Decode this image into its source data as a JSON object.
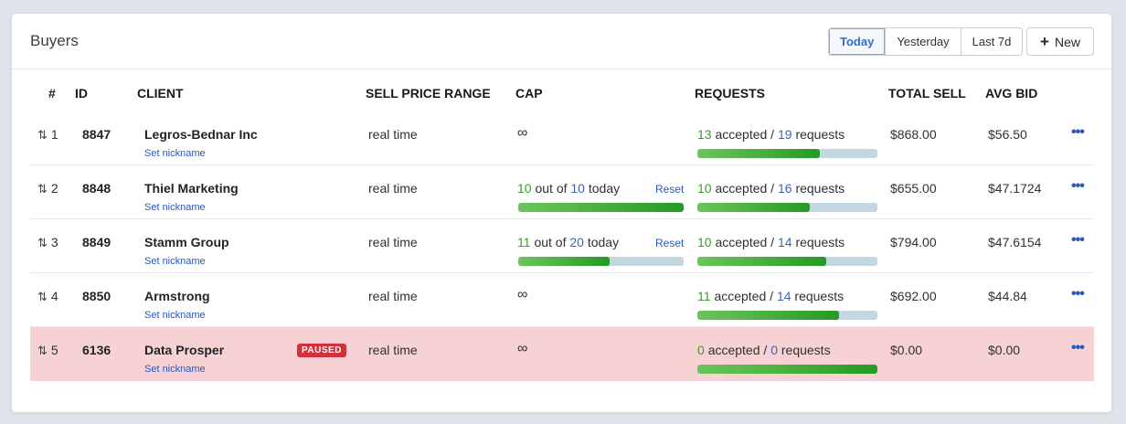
{
  "card": {
    "title": "Buyers",
    "range_tabs": [
      "Today",
      "Yesterday",
      "Last 7d"
    ],
    "active_tab": "Today",
    "new_label": "New"
  },
  "columns": [
    "#",
    "ID",
    "CLIENT",
    "SELL PRICE RANGE",
    "CAP",
    "REQUESTS",
    "TOTAL SELL",
    "AVG BID"
  ],
  "rows": [
    {
      "rank": "1",
      "id": "8847",
      "client": "Legros-Bednar Inc",
      "nickname_link": "Set nickname",
      "paused": false,
      "price_range": "real time",
      "cap": {
        "infinite": true,
        "symbol": "∞"
      },
      "requests": {
        "accepted": "13",
        "accepted_label": "accepted /",
        "total": "19",
        "total_label": "requests",
        "fill_fraction": 0.68
      },
      "total_sell": "$868.00",
      "avg_bid": "$56.50"
    },
    {
      "rank": "2",
      "id": "8848",
      "client": "Thiel Marketing",
      "nickname_link": "Set nickname",
      "paused": false,
      "price_range": "real time",
      "cap": {
        "infinite": false,
        "used": "10",
        "out_of": "out of",
        "limit": "10",
        "period": "today",
        "reset": "Reset",
        "fill_fraction": 1.0
      },
      "requests": {
        "accepted": "10",
        "accepted_label": "accepted /",
        "total": "16",
        "total_label": "requests",
        "fill_fraction": 0.625
      },
      "total_sell": "$655.00",
      "avg_bid": "$47.1724"
    },
    {
      "rank": "3",
      "id": "8849",
      "client": "Stamm Group",
      "nickname_link": "Set nickname",
      "paused": false,
      "price_range": "real time",
      "cap": {
        "infinite": false,
        "used": "11",
        "out_of": "out of",
        "limit": "20",
        "period": "today",
        "reset": "Reset",
        "fill_fraction": 0.55
      },
      "requests": {
        "accepted": "10",
        "accepted_label": "accepted /",
        "total": "14",
        "total_label": "requests",
        "fill_fraction": 0.714
      },
      "total_sell": "$794.00",
      "avg_bid": "$47.6154"
    },
    {
      "rank": "4",
      "id": "8850",
      "client": "Armstrong",
      "nickname_link": "Set nickname",
      "paused": false,
      "price_range": "real time",
      "cap": {
        "infinite": true,
        "symbol": "∞"
      },
      "requests": {
        "accepted": "11",
        "accepted_label": "accepted /",
        "total": "14",
        "total_label": "requests",
        "fill_fraction": 0.786
      },
      "total_sell": "$692.00",
      "avg_bid": "$44.84"
    },
    {
      "rank": "5",
      "id": "6136",
      "client": "Data Prosper",
      "nickname_link": "Set nickname",
      "paused": true,
      "paused_label": "PAUSED",
      "price_range": "real time",
      "cap": {
        "infinite": true,
        "symbol": "∞"
      },
      "requests": {
        "accepted": "0",
        "accepted_label": "accepted /",
        "total": "0",
        "total_label": "requests",
        "fill_fraction": 1.0
      },
      "total_sell": "$0.00",
      "avg_bid": "$0.00"
    }
  ],
  "icons": {
    "sort": "sort-arrows-icon",
    "menu": "ellipsis-icon",
    "add": "plus-icon"
  },
  "colors": {
    "accent_blue": "#2a57b8",
    "green": "#3b9b2c",
    "paused_row": "#f6d2d5",
    "paused_badge": "#d0313c"
  }
}
